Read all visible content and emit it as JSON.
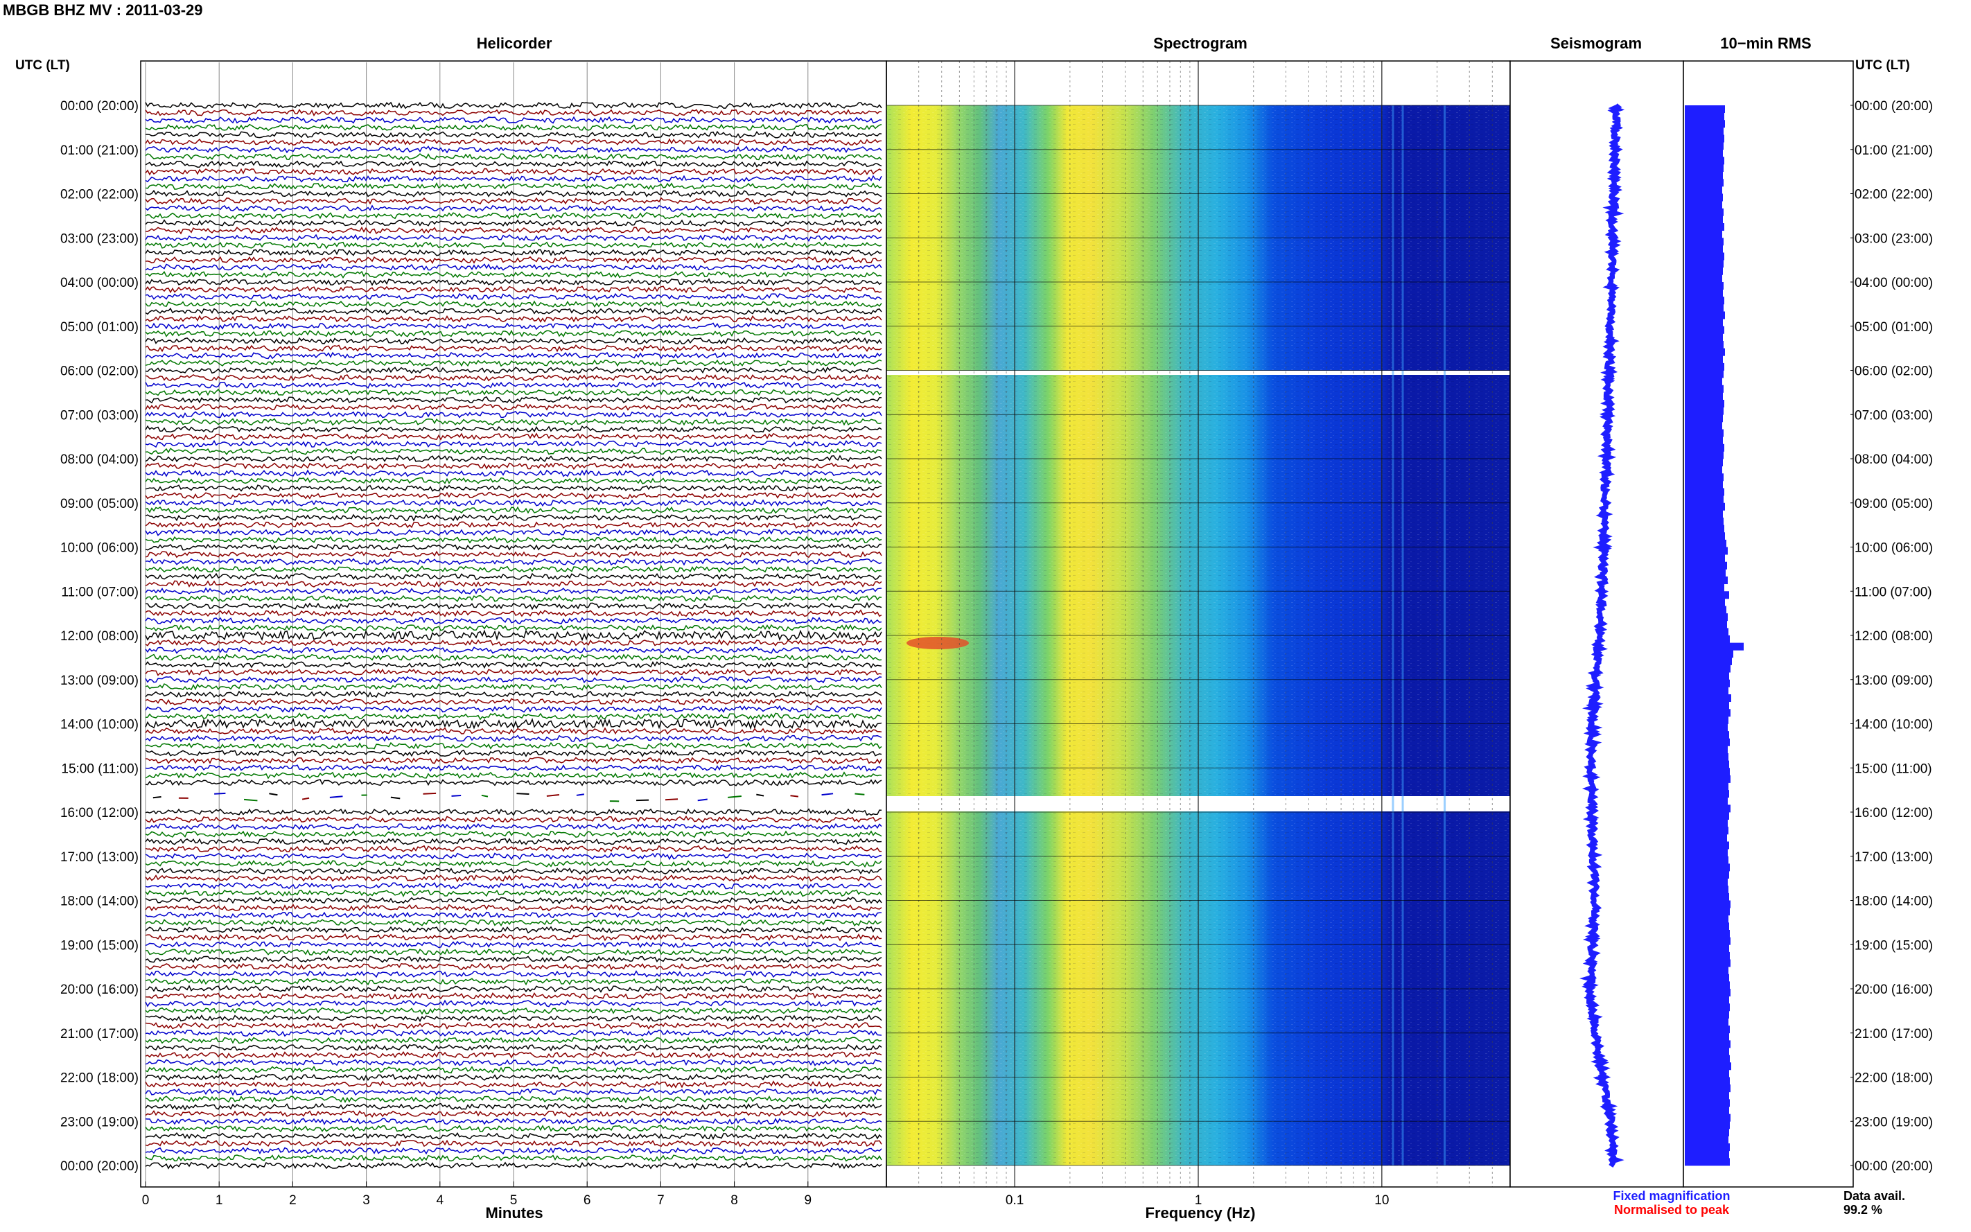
{
  "header": {
    "station_title": "MBGB BHZ MV : 2011-03-29",
    "utc_label_left": "UTC (LT)",
    "utc_label_right": "UTC (LT)"
  },
  "panels": {
    "helicorder": "Helicorder",
    "spectrogram": "Spectrogram",
    "seismogram": "Seismogram",
    "rms": "10−min RMS"
  },
  "footer": {
    "minutes_label": "Minutes",
    "frequency_label": "Frequency (Hz)",
    "fixed_magnification": "Fixed magnification",
    "normalised_to_peak": "Normalised to peak",
    "data_avail_label": "Data avail.",
    "data_avail_value": "99.2 %"
  },
  "colors": {
    "trace_cycle": [
      "#000000",
      "#8b0000",
      "#0000cc",
      "#007700"
    ],
    "seismogram": "#1e1eff",
    "rms": "#1e1eff",
    "fixed_magnification": "#1e1eff",
    "normalised_to_peak": "#ff0000"
  },
  "chart_data": [
    {
      "type": "line",
      "name": "helicorder",
      "title": "Helicorder",
      "xlabel": "Minutes",
      "xticks": [
        "0",
        "1",
        "2",
        "3",
        "4",
        "5",
        "6",
        "7",
        "8",
        "9"
      ],
      "xlim": [
        0,
        10
      ],
      "y_tick_labels": [
        "00:00 (20:00)",
        "01:00 (21:00)",
        "02:00 (22:00)",
        "03:00 (23:00)",
        "04:00 (00:00)",
        "05:00 (01:00)",
        "06:00 (02:00)",
        "07:00 (03:00)",
        "08:00 (04:00)",
        "09:00 (05:00)",
        "10:00 (06:00)",
        "11:00 (07:00)",
        "12:00 (08:00)",
        "13:00 (09:00)",
        "14:00 (10:00)",
        "15:00 (11:00)",
        "16:00 (12:00)",
        "17:00 (13:00)",
        "18:00 (14:00)",
        "19:00 (15:00)",
        "20:00 (16:00)",
        "21:00 (17:00)",
        "22:00 (18:00)",
        "23:00 (19:00)",
        "00:00 (20:00)"
      ],
      "rows_per_hour": 6
    },
    {
      "type": "heatmap",
      "name": "spectrogram",
      "title": "Spectrogram",
      "xlabel": "Frequency (Hz)",
      "xscale": "log",
      "xlim": [
        0.02,
        50
      ],
      "xticks": [
        0.1,
        1,
        10
      ],
      "xtick_labels": [
        "0.1",
        "1",
        "10"
      ],
      "gaps_hours": [
        6.1,
        15.75,
        16.1
      ]
    },
    {
      "type": "line",
      "name": "seismogram",
      "title": "Seismogram",
      "legend": [
        "Fixed magnification",
        "Normalised to peak"
      ]
    },
    {
      "type": "bar",
      "name": "rms",
      "title": "10−min RMS",
      "orientation": "horizontal",
      "values": [
        58,
        57,
        58,
        56,
        57,
        56,
        55,
        57,
        56,
        55,
        56,
        54,
        55,
        54,
        56,
        55,
        57,
        54,
        56,
        55,
        57,
        56,
        55,
        54,
        56,
        55,
        57,
        56,
        58,
        55,
        57,
        55,
        56,
        58,
        55,
        57,
        56,
        54,
        56,
        55,
        57,
        56,
        55,
        54,
        56,
        55,
        57,
        56,
        55,
        54,
        56,
        55,
        57,
        56,
        58,
        55,
        56,
        57,
        58,
        60,
        62,
        58,
        61,
        59,
        62,
        57,
        64,
        58,
        60,
        62,
        61,
        63,
        65,
        85,
        70,
        68,
        66,
        64,
        65,
        63,
        67,
        64,
        66,
        63,
        62,
        64,
        65,
        62,
        63,
        64,
        65,
        66,
        63,
        64,
        62,
        66,
        64,
        62,
        63,
        61,
        64,
        62,
        63,
        65,
        64,
        62,
        63,
        64,
        66,
        65,
        63,
        64,
        65,
        66,
        64,
        65,
        66,
        63,
        64,
        65,
        66,
        64,
        65,
        64,
        63,
        65,
        64,
        66,
        64,
        65,
        67,
        64,
        65,
        66,
        64,
        65,
        64,
        66,
        65,
        64,
        63,
        65,
        64,
        65
      ]
    }
  ]
}
